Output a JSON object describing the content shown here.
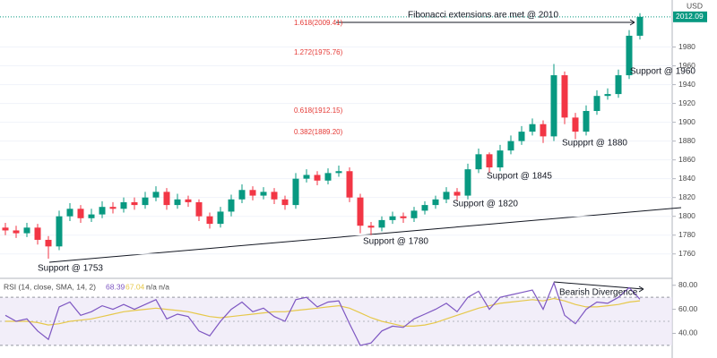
{
  "chart_data": [
    {
      "type": "candlestick",
      "currency": "USD",
      "last_price_label": "2012.09",
      "up_color": "#089981",
      "down_color": "#f23645",
      "open": [
        1788,
        1785,
        1782,
        1788,
        1775,
        1768,
        1800,
        1808,
        1798,
        1802,
        1810,
        1808,
        1815,
        1812,
        1820,
        1826,
        1812,
        1818,
        1815,
        1800,
        1792,
        1805,
        1818,
        1828,
        1822,
        1826,
        1818,
        1812,
        1840,
        1844,
        1838,
        1846,
        1848,
        1820,
        1790,
        1788,
        1796,
        1800,
        1798,
        1806,
        1812,
        1818,
        1826,
        1822,
        1850,
        1866,
        1852,
        1870,
        1880,
        1890,
        1898,
        1885,
        1950,
        1905,
        1890,
        1912,
        1928,
        1930,
        1950,
        1992
      ],
      "high": [
        1793,
        1790,
        1793,
        1792,
        1779,
        1806,
        1814,
        1812,
        1808,
        1816,
        1815,
        1820,
        1820,
        1826,
        1832,
        1830,
        1824,
        1822,
        1818,
        1804,
        1810,
        1823,
        1834,
        1832,
        1831,
        1830,
        1822,
        1846,
        1850,
        1848,
        1851,
        1854,
        1852,
        1824,
        1794,
        1800,
        1805,
        1804,
        1810,
        1816,
        1822,
        1831,
        1830,
        1856,
        1872,
        1868,
        1876,
        1886,
        1896,
        1904,
        1902,
        1962,
        1954,
        1910,
        1918,
        1934,
        1936,
        1956,
        1998,
        2016
      ],
      "low": [
        1780,
        1777,
        1778,
        1770,
        1755,
        1764,
        1795,
        1793,
        1794,
        1798,
        1803,
        1804,
        1807,
        1808,
        1816,
        1807,
        1808,
        1810,
        1795,
        1787,
        1788,
        1800,
        1814,
        1817,
        1818,
        1813,
        1807,
        1808,
        1836,
        1833,
        1834,
        1842,
        1815,
        1782,
        1780,
        1784,
        1792,
        1793,
        1794,
        1802,
        1808,
        1814,
        1817,
        1818,
        1846,
        1846,
        1848,
        1866,
        1876,
        1886,
        1878,
        1880,
        1898,
        1882,
        1886,
        1908,
        1924,
        1926,
        1946,
        1988
      ],
      "close": [
        1785,
        1782,
        1788,
        1775,
        1768,
        1800,
        1808,
        1798,
        1802,
        1810,
        1808,
        1815,
        1812,
        1820,
        1826,
        1812,
        1818,
        1815,
        1800,
        1792,
        1805,
        1818,
        1828,
        1822,
        1826,
        1818,
        1812,
        1840,
        1844,
        1838,
        1846,
        1848,
        1820,
        1790,
        1788,
        1796,
        1800,
        1798,
        1806,
        1812,
        1818,
        1826,
        1822,
        1850,
        1866,
        1852,
        1870,
        1880,
        1890,
        1898,
        1885,
        1950,
        1905,
        1890,
        1912,
        1928,
        1930,
        1950,
        1992,
        2012.09
      ],
      "ylim": [
        1735,
        2030
      ],
      "yticks": [
        1760,
        1780,
        1800,
        1820,
        1840,
        1860,
        1880,
        1900,
        1920,
        1940,
        1960,
        1980
      ],
      "annotations": [
        "Fibonacci extensions are met @ 2010",
        "1.618(2009.41)",
        "1.272(1975.76)",
        "0.618(1912.15)",
        "0.382(1889.20)",
        "Support @ 1753",
        "Support @ 1780",
        "Support @ 1820",
        "Support @ 1845",
        "Suppprt @ 1880",
        "Support @ 1960"
      ]
    },
    {
      "type": "line",
      "indicator_label": "RSI (14, close, SMA, 14, 2)",
      "na_label": "n/a n/a",
      "series": [
        {
          "color": "#7e57c2",
          "last_label": "68.39",
          "values": [
            55,
            50,
            52,
            42,
            35,
            62,
            66,
            55,
            58,
            63,
            60,
            64,
            60,
            64,
            68,
            52,
            56,
            54,
            42,
            38,
            50,
            60,
            66,
            58,
            61,
            54,
            50,
            68,
            70,
            62,
            66,
            67,
            48,
            30,
            32,
            42,
            46,
            45,
            52,
            56,
            60,
            65,
            58,
            70,
            75,
            60,
            70,
            72,
            74,
            76,
            60,
            82,
            55,
            48,
            60,
            66,
            65,
            70,
            78,
            68.39
          ]
        },
        {
          "color": "#e6c84a",
          "last_label": "67.04",
          "values": [
            50,
            50,
            50,
            49,
            47,
            48,
            50,
            51,
            52,
            54,
            56,
            58,
            59,
            60,
            61,
            60,
            59,
            58,
            56,
            54,
            53,
            54,
            55,
            56,
            57,
            58,
            58,
            59,
            60,
            61,
            62,
            63,
            61,
            57,
            53,
            50,
            48,
            46,
            46,
            47,
            49,
            52,
            55,
            58,
            61,
            63,
            65,
            66,
            67,
            68,
            67,
            69,
            67,
            64,
            62,
            62,
            63,
            64,
            66,
            67.04
          ]
        }
      ],
      "band": [
        30,
        70
      ],
      "midline": 50,
      "ylim": [
        21,
        85
      ],
      "yticks": [
        {
          "value": 40,
          "label": "40.00"
        },
        {
          "value": 60,
          "label": "60.00"
        },
        {
          "value": 80,
          "label": "80.00"
        }
      ],
      "annotations": [
        "Bearish Divergence"
      ]
    }
  ]
}
